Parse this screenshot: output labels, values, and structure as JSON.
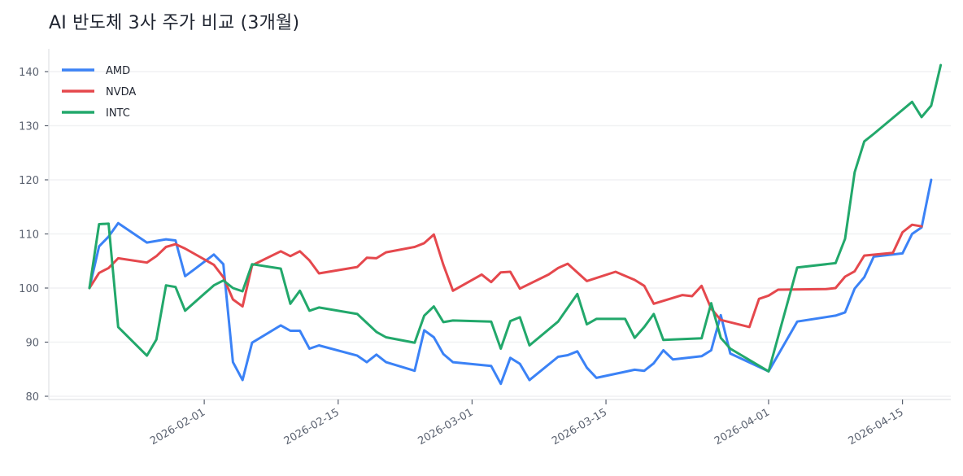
{
  "title": "AI 반도체 3사 주가 비교 (3개월)",
  "chart_data": {
    "type": "line",
    "title": "AI 반도체 3사 주가 비교 (3개월)",
    "xlabel": "",
    "ylabel": "",
    "ylim": [
      79.5,
      143.5
    ],
    "yticks": [
      80,
      90,
      100,
      110,
      120,
      130,
      140
    ],
    "xticks": [
      "2026-02-01",
      "2026-02-15",
      "2026-03-01",
      "2026-03-15",
      "2026-04-01",
      "2026-04-15"
    ],
    "grid": "y",
    "legend_position": "upper left",
    "x_start": "2026-01-20",
    "series": [
      {
        "name": "AMD",
        "color": "#3b82f6",
        "points": [
          [
            0,
            100
          ],
          [
            1,
            107.7
          ],
          [
            2,
            109.5
          ],
          [
            3,
            112
          ],
          [
            6,
            108.4
          ],
          [
            8,
            109
          ],
          [
            9,
            108.8
          ],
          [
            10,
            102.2
          ],
          [
            11,
            103.5
          ],
          [
            13,
            106.2
          ],
          [
            14,
            104.4
          ],
          [
            15,
            86.3
          ],
          [
            16,
            83
          ],
          [
            17,
            89.9
          ],
          [
            20,
            93.1
          ],
          [
            21,
            92.1
          ],
          [
            22,
            92.1
          ],
          [
            23,
            88.8
          ],
          [
            24,
            89.4
          ],
          [
            28,
            87.5
          ],
          [
            29,
            86.3
          ],
          [
            30,
            87.7
          ],
          [
            31,
            86.3
          ],
          [
            34,
            84.7
          ],
          [
            35,
            92.2
          ],
          [
            36,
            90.9
          ],
          [
            37,
            87.8
          ],
          [
            38,
            86.3
          ],
          [
            42,
            85.6
          ],
          [
            43,
            82.3
          ],
          [
            44,
            87.1
          ],
          [
            45,
            86
          ],
          [
            46,
            83
          ],
          [
            49,
            87.3
          ],
          [
            50,
            87.6
          ],
          [
            51,
            88.3
          ],
          [
            52,
            85.3
          ],
          [
            53,
            83.4
          ],
          [
            57,
            84.9
          ],
          [
            58,
            84.7
          ],
          [
            59,
            86.1
          ],
          [
            60,
            88.5
          ],
          [
            61,
            86.8
          ],
          [
            64,
            87.4
          ],
          [
            65,
            88.5
          ],
          [
            66,
            95
          ],
          [
            67,
            87.9
          ],
          [
            71,
            84.6
          ],
          [
            74,
            93.8
          ],
          [
            78,
            94.9
          ],
          [
            79,
            95.5
          ],
          [
            80,
            99.9
          ],
          [
            81,
            102
          ],
          [
            82,
            105.8
          ],
          [
            85,
            106.4
          ],
          [
            86,
            110
          ],
          [
            87,
            111.2
          ],
          [
            88,
            120
          ]
        ]
      },
      {
        "name": "NVDA",
        "color": "#e5484d",
        "points": [
          [
            0,
            100
          ],
          [
            1,
            102.8
          ],
          [
            2,
            103.7
          ],
          [
            3,
            105.5
          ],
          [
            6,
            104.7
          ],
          [
            7,
            105.9
          ],
          [
            8,
            107.6
          ],
          [
            9,
            108.1
          ],
          [
            10,
            107.3
          ],
          [
            13,
            104.3
          ],
          [
            14,
            102
          ],
          [
            15,
            97.9
          ],
          [
            16,
            96.6
          ],
          [
            17,
            104.2
          ],
          [
            20,
            106.8
          ],
          [
            21,
            105.9
          ],
          [
            22,
            106.8
          ],
          [
            23,
            105.1
          ],
          [
            24,
            102.7
          ],
          [
            28,
            103.9
          ],
          [
            29,
            105.6
          ],
          [
            30,
            105.5
          ],
          [
            31,
            106.6
          ],
          [
            34,
            107.6
          ],
          [
            35,
            108.3
          ],
          [
            36,
            109.9
          ],
          [
            37,
            104.3
          ],
          [
            38,
            99.5
          ],
          [
            41,
            102.5
          ],
          [
            42,
            101.1
          ],
          [
            43,
            102.9
          ],
          [
            44,
            103
          ],
          [
            45,
            99.9
          ],
          [
            48,
            102.5
          ],
          [
            49,
            103.7
          ],
          [
            50,
            104.5
          ],
          [
            52,
            101.3
          ],
          [
            55,
            103
          ],
          [
            57,
            101.5
          ],
          [
            58,
            100.4
          ],
          [
            59,
            97.1
          ],
          [
            62,
            98.7
          ],
          [
            63,
            98.5
          ],
          [
            64,
            100.4
          ],
          [
            65,
            96.2
          ],
          [
            66,
            94.1
          ],
          [
            69,
            92.8
          ],
          [
            70,
            98
          ],
          [
            71,
            98.6
          ],
          [
            72,
            99.7
          ],
          [
            77,
            99.8
          ],
          [
            78,
            100
          ],
          [
            79,
            102.1
          ],
          [
            80,
            103.1
          ],
          [
            81,
            106
          ],
          [
            84,
            106.5
          ],
          [
            85,
            110.3
          ],
          [
            86,
            111.7
          ],
          [
            87,
            111.4
          ]
        ]
      },
      {
        "name": "INTC",
        "color": "#22a86b",
        "points": [
          [
            0,
            100
          ],
          [
            1,
            111.8
          ],
          [
            2,
            111.9
          ],
          [
            3,
            92.8
          ],
          [
            6,
            87.5
          ],
          [
            7,
            90.5
          ],
          [
            8,
            100.5
          ],
          [
            9,
            100.2
          ],
          [
            10,
            95.8
          ],
          [
            13,
            100.5
          ],
          [
            14,
            101.4
          ],
          [
            15,
            100
          ],
          [
            16,
            99.4
          ],
          [
            17,
            104.4
          ],
          [
            20,
            103.6
          ],
          [
            21,
            97.1
          ],
          [
            22,
            99.5
          ],
          [
            23,
            95.8
          ],
          [
            24,
            96.4
          ],
          [
            28,
            95.2
          ],
          [
            30,
            91.9
          ],
          [
            31,
            90.9
          ],
          [
            34,
            89.9
          ],
          [
            35,
            94.9
          ],
          [
            36,
            96.6
          ],
          [
            37,
            93.7
          ],
          [
            38,
            94
          ],
          [
            42,
            93.8
          ],
          [
            43,
            88.8
          ],
          [
            44,
            93.9
          ],
          [
            45,
            94.6
          ],
          [
            46,
            89.4
          ],
          [
            49,
            93.8
          ],
          [
            51,
            98.9
          ],
          [
            52,
            93.3
          ],
          [
            53,
            94.3
          ],
          [
            56,
            94.3
          ],
          [
            57,
            90.8
          ],
          [
            58,
            92.8
          ],
          [
            59,
            95.2
          ],
          [
            60,
            90.4
          ],
          [
            64,
            90.7
          ],
          [
            65,
            97.2
          ],
          [
            66,
            90.8
          ],
          [
            67,
            88.8
          ],
          [
            71,
            84.6
          ],
          [
            72,
            91
          ],
          [
            74,
            103.8
          ],
          [
            78,
            104.6
          ],
          [
            79,
            109.1
          ],
          [
            80,
            121.4
          ],
          [
            81,
            127.1
          ],
          [
            82,
            128.5
          ],
          [
            86,
            134.4
          ],
          [
            87,
            131.6
          ],
          [
            88,
            133.7
          ],
          [
            89,
            141.2
          ]
        ]
      }
    ]
  }
}
